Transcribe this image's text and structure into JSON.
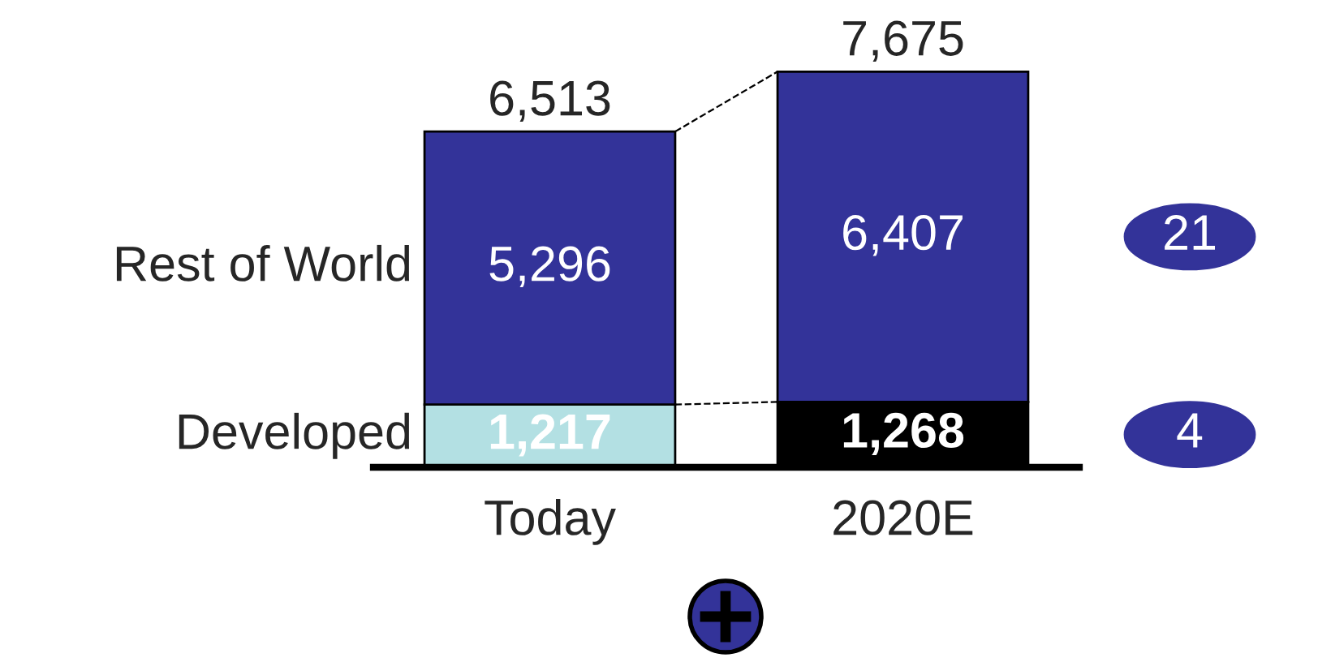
{
  "chart_data": {
    "type": "bar",
    "stacked": true,
    "categories": [
      "Today",
      "2020E"
    ],
    "series": [
      {
        "name": "Developed",
        "colors": [
          "#b3e0e3",
          "#000000"
        ],
        "values": [
          1217,
          1268
        ],
        "value_labels": [
          "1,217",
          "1,268"
        ]
      },
      {
        "name": "Rest of World",
        "color": "#333399",
        "values": [
          5296,
          6407
        ],
        "value_labels": [
          "5,296",
          "6,407"
        ]
      }
    ],
    "totals": [
      "6,513",
      "7,675"
    ],
    "annotations": [
      "21",
      "4"
    ],
    "legend": false,
    "grid": false
  }
}
